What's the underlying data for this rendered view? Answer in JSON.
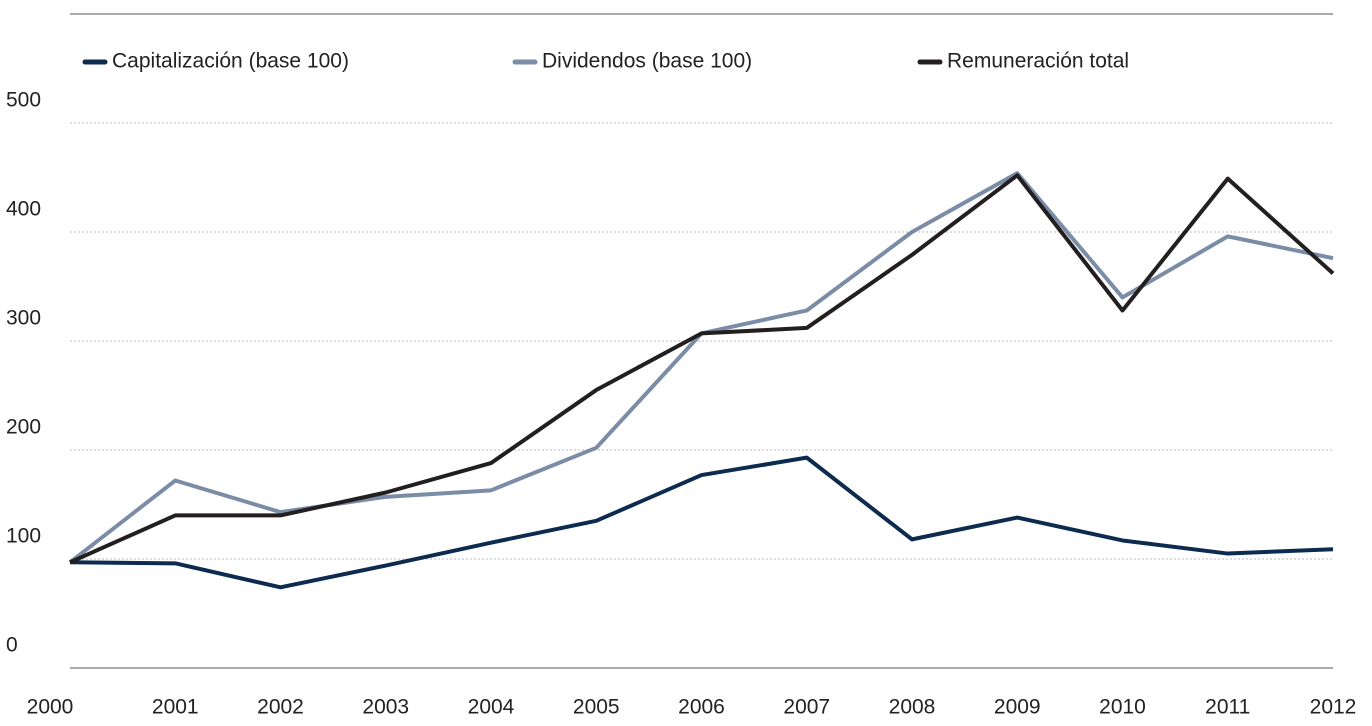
{
  "chart_data": {
    "type": "line",
    "x": [
      2000,
      2001,
      2002,
      2003,
      2004,
      2005,
      2006,
      2007,
      2008,
      2009,
      2010,
      2011,
      2012
    ],
    "series": [
      {
        "name": "Capitalización (base 100)",
        "color": "#0d2a4f",
        "values": [
          97,
          96,
          74,
          94,
          115,
          135,
          177,
          193,
          118,
          138,
          117,
          105,
          109
        ]
      },
      {
        "name": "Dividendos (base 100)",
        "color": "#7a8ca6",
        "values": [
          97,
          172,
          143,
          157,
          163,
          202,
          307,
          328,
          400,
          454,
          340,
          396,
          376
        ]
      },
      {
        "name": "Remuneración total",
        "color": "#231f20",
        "values": [
          97,
          140,
          140,
          161,
          188,
          255,
          307,
          312,
          379,
          452,
          328,
          449,
          362
        ]
      }
    ],
    "xlim": [
      2000,
      2012
    ],
    "ylim": [
      0,
      600
    ],
    "yticks": [
      0,
      100,
      200,
      300,
      400,
      500,
      600
    ],
    "grid": true,
    "legend": "top"
  }
}
